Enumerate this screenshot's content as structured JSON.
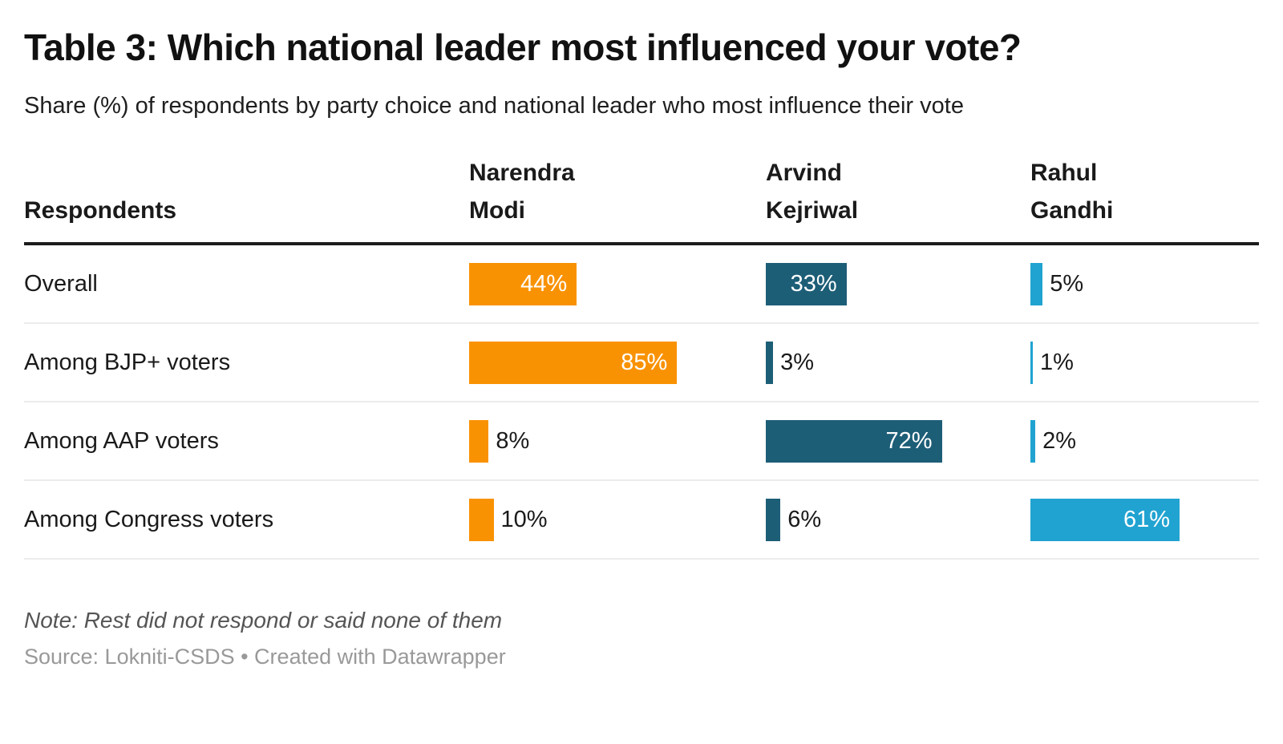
{
  "title": "Table 3: Which national leader most influenced your vote?",
  "subtitle": "Share (%) of respondents by party choice and national leader who most influence their vote",
  "table": {
    "row_header_label": "Respondents",
    "column_headers": [
      "Narendra\nModi",
      "Arvind\nKejriwal",
      "Rahul\nGandhi"
    ]
  },
  "chart_data": {
    "type": "bar",
    "orientation": "horizontal",
    "title": "Table 3: Which national leader most influenced your vote?",
    "subtitle": "Share (%) of respondents by party choice and national leader who most influence their vote",
    "categories": [
      "Overall",
      "Among BJP+ voters",
      "Among AAP voters",
      "Among Congress voters"
    ],
    "series": [
      {
        "name": "Narendra Modi",
        "color": "#F99203",
        "values": [
          44,
          85,
          8,
          10
        ]
      },
      {
        "name": "Arvind Kejriwal",
        "color": "#1D5E77",
        "values": [
          33,
          3,
          72,
          6
        ]
      },
      {
        "name": "Rahul Gandhi",
        "color": "#21A3D1",
        "values": [
          5,
          1,
          2,
          61
        ]
      }
    ],
    "value_suffix": "%",
    "xlim": [
      0,
      100
    ],
    "grid": false,
    "legend": "none",
    "label_inside_threshold": 15
  },
  "note": "Note: Rest did not respond or said none of them",
  "source": "Source: Lokniti-CSDS • Created with Datawrapper"
}
